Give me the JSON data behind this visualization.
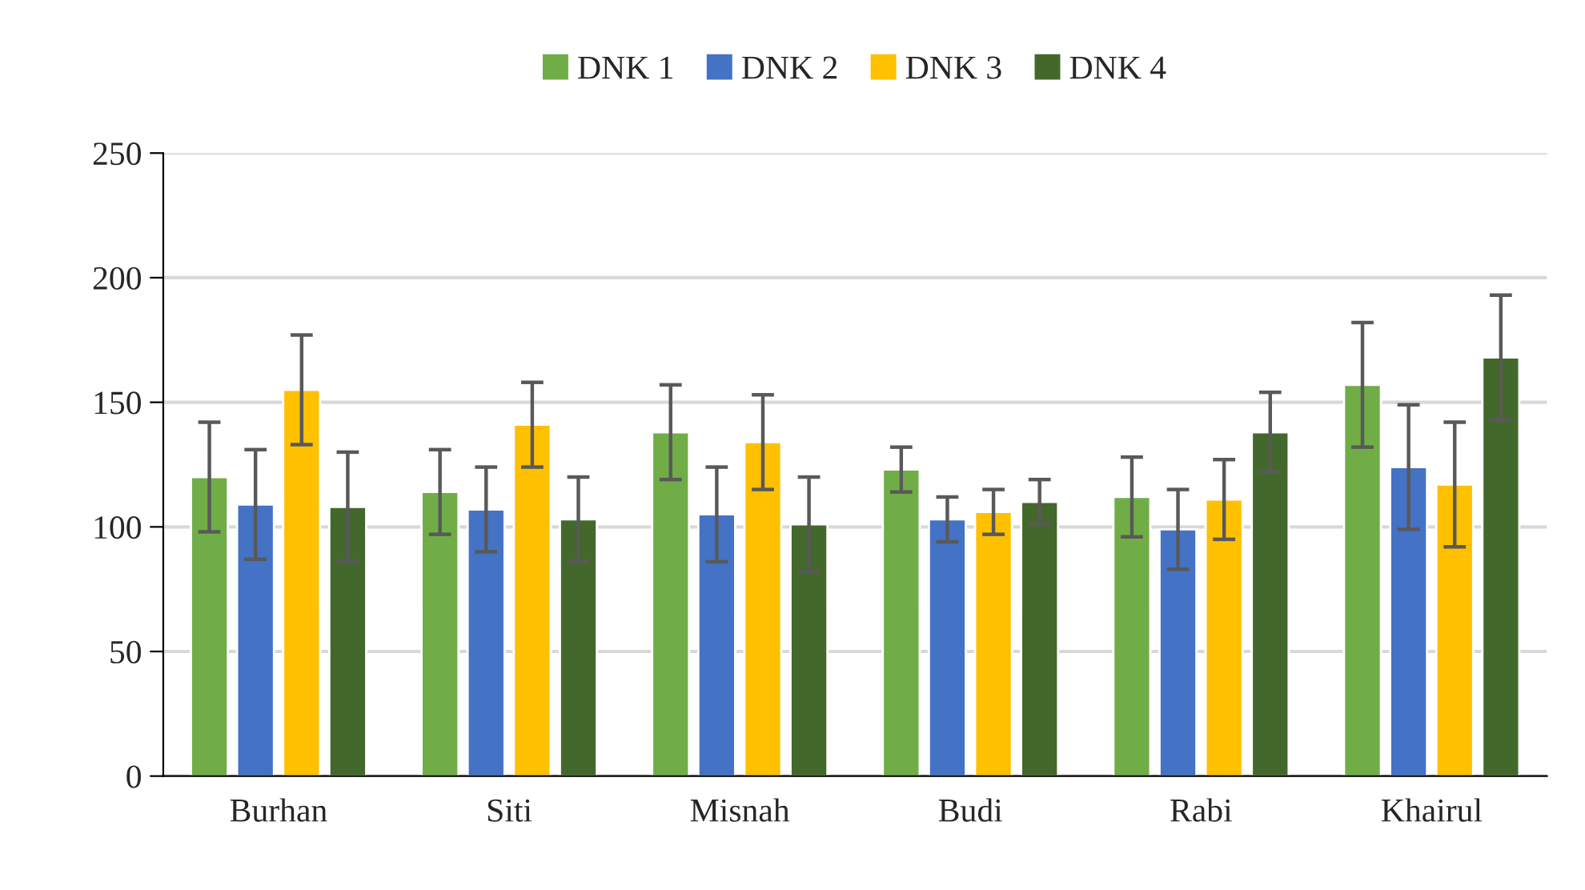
{
  "chart_data": {
    "type": "bar",
    "categories": [
      "Burhan",
      "Siti",
      "Misnah",
      "Budi",
      "Rabi",
      "Khairul"
    ],
    "series": [
      {
        "name": "DNK 1",
        "color": "#70ad47",
        "values": [
          120,
          114,
          138,
          123,
          112,
          157
        ],
        "errors": [
          22,
          17,
          19,
          9,
          16,
          25
        ]
      },
      {
        "name": "DNK 2",
        "color": "#4472c4",
        "values": [
          109,
          107,
          105,
          103,
          99,
          124
        ],
        "errors": [
          22,
          17,
          19,
          9,
          16,
          25
        ]
      },
      {
        "name": "DNK 3",
        "color": "#ffc000",
        "values": [
          155,
          141,
          134,
          106,
          111,
          117
        ],
        "errors": [
          22,
          17,
          19,
          9,
          16,
          25
        ]
      },
      {
        "name": "DNK 4",
        "color": "#43682b",
        "values": [
          108,
          103,
          101,
          110,
          138,
          168
        ],
        "errors": [
          22,
          17,
          19,
          9,
          16,
          25
        ]
      }
    ],
    "ylim": [
      0,
      250
    ],
    "yticks": [
      0,
      50,
      100,
      150,
      200,
      250
    ],
    "grid": "y",
    "legend": "top"
  }
}
